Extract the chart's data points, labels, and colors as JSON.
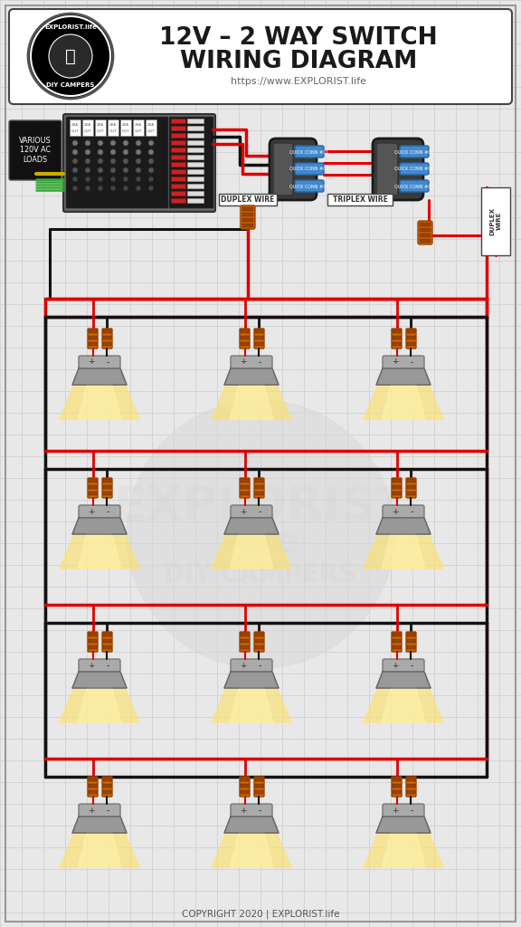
{
  "title_line1": "12V – 2 WAY SWITCH",
  "title_line2": "WIRING DIAGRAM",
  "subtitle": "https://www.EXPLORIST.life",
  "copyright": "COPYRIGHT 2020 | EXPLORIST.life",
  "bg_color": "#e8e8e8",
  "grid_color": "#cccccc",
  "wire_red": "#dd0000",
  "wire_black": "#111111",
  "wire_yellow": "#ccaa00",
  "connector_blue": "#4488cc",
  "connector_orange": "#cc6600",
  "light_glow": "#ffe066",
  "label_various": "VARIOUS\n120V AC\nLOADS",
  "label_duplex1": "DUPLEX WIRE",
  "label_triplex": "TRIPLEX WIRE",
  "label_duplex2": "DUPLEX\nWIRE"
}
